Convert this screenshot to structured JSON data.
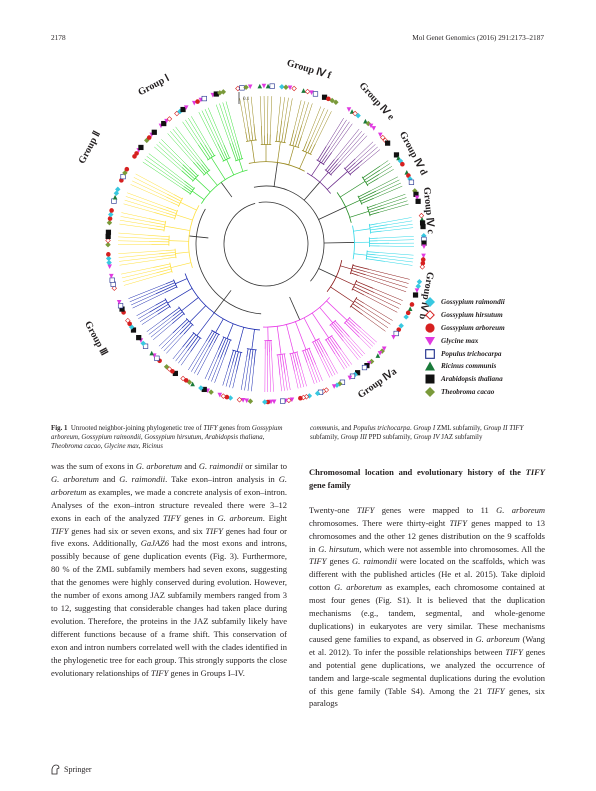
{
  "header": {
    "page_number": "2178",
    "journal": "Mol Genet Genomics (2016) 291:2173–2187"
  },
  "figure": {
    "scale_label": "0.1",
    "group_labels": {
      "g1": "Group Ⅰ",
      "g2": "Group Ⅱ",
      "g3": "Group Ⅲ",
      "g4a": "Group Ⅳa",
      "g4b": "Group Ⅳ b",
      "g4c": "Group Ⅳ c",
      "g4d": "Group Ⅳ d",
      "g4e": "Group Ⅳ e",
      "g4f": "Group Ⅳ f"
    },
    "legend": [
      {
        "label": "Gossypium raimondii",
        "shape": "diamond",
        "color": "#38c8e0"
      },
      {
        "label": "Gossypium hirsutum",
        "shape": "diamond-open",
        "color": "#d62020"
      },
      {
        "label": "Gossypium arboreum",
        "shape": "circle",
        "color": "#d62020"
      },
      {
        "label": "Glycine max",
        "shape": "triangle-down",
        "color": "#e03ae0"
      },
      {
        "label": "Populus trichocarpa",
        "shape": "square-open",
        "color": "#1a2a8a"
      },
      {
        "label": "Ricinus communis",
        "shape": "triangle-up",
        "color": "#1a7a3a"
      },
      {
        "label": "Arabidopsis thaliana",
        "shape": "square",
        "color": "#111111"
      },
      {
        "label": "Theobroma cacao",
        "shape": "diamond",
        "color": "#7a9a3a"
      }
    ],
    "branch_colors": {
      "g4f": "#9a8a20",
      "g4e": "#6a2a8a",
      "g4d": "#228b22",
      "g4c": "#30d8e8",
      "g4b": "#8b1a1a",
      "g4a": "#e83ae8",
      "g3": "#1a2ab0",
      "g2": "#ffe040",
      "g1": "#40e040",
      "core": "#333333"
    }
  },
  "caption": {
    "left": "Fig. 1  Unrooted neighbor-joining phylogenetic tree of TIFY genes from Gossypium arboreum, Gossypium raimondii, Gossypium hirsutum, Arabidopsis thaliana, Theobroma cacao, Glycine max, Ricinus",
    "right": "communis, and Populus trichocarpa. Group I ZML subfamily, Group II TIFY subfamily, Group III PPD subfamily, Group IV JAZ subfamily"
  },
  "body": {
    "left_para": "was the sum of exons in G. arboretum and G. raimondii or similar to G. arboretum and G. raimondii. Take exon–intron analysis in G. arboretum as examples, we made a concrete analysis of exon–intron. Analyses of the exon–intron structure revealed there were 3–12 exons in each of the analyzed TIFY genes in G. arboreum. Eight TIFY genes had six or seven exons, and six TIFY genes had four or five exons. Additionally, GaJAZ6 had the most exons and introns, possibly because of gene duplication events (Fig. 3). Furthermore, 80 % of the ZML subfamily members had seven exons, suggesting that the genomes were highly conserved during evolution. However, the number of exons among JAZ subfamily members ranged from 3 to 12, suggesting that considerable changes had taken place during evolution. Therefore, the proteins in the JAZ subfamily likely have different functions because of a frame shift. This conservation of exon and intron numbers correlated well with the clades identified in the phylogenetic tree for each group. This strongly supports the close evolutionary relationships of TIFY genes in Groups I–IV.",
    "section_heading": "Chromosomal location and evolutionary history of the TIFY gene family",
    "right_para": "Twenty-one TIFY genes were mapped to 11 G. arboreum chromosomes. There were thirty-eight TIFY genes mapped to 13 chromosomes and the other 12 genes distribution on the 9 scaffolds in G. hirsutum, which were not assemble into chromosomes. All the TIFY genes G. raimondii were located on the scaffolds, which was different with the published articles (He et al. 2015). Take diploid cotton G. arboretum as examples, each chromosome contained at most four genes (Fig. S1). It is believed that the duplication mechanisms (e.g., tandem, segmental, and whole-genome duplications) in eukaryotes are very similar. These mechanisms caused gene families to expand, as observed in G. arboreum (Wang et al. 2012). To infer the possible relationships between TIFY genes and potential gene duplications, we analyzed the occurrence of tandem and large-scale segmental duplications during the evolution of this gene family (Table S4). Among the 21 TIFY genes, six paralogs"
  },
  "footer": {
    "publisher": "Springer"
  }
}
